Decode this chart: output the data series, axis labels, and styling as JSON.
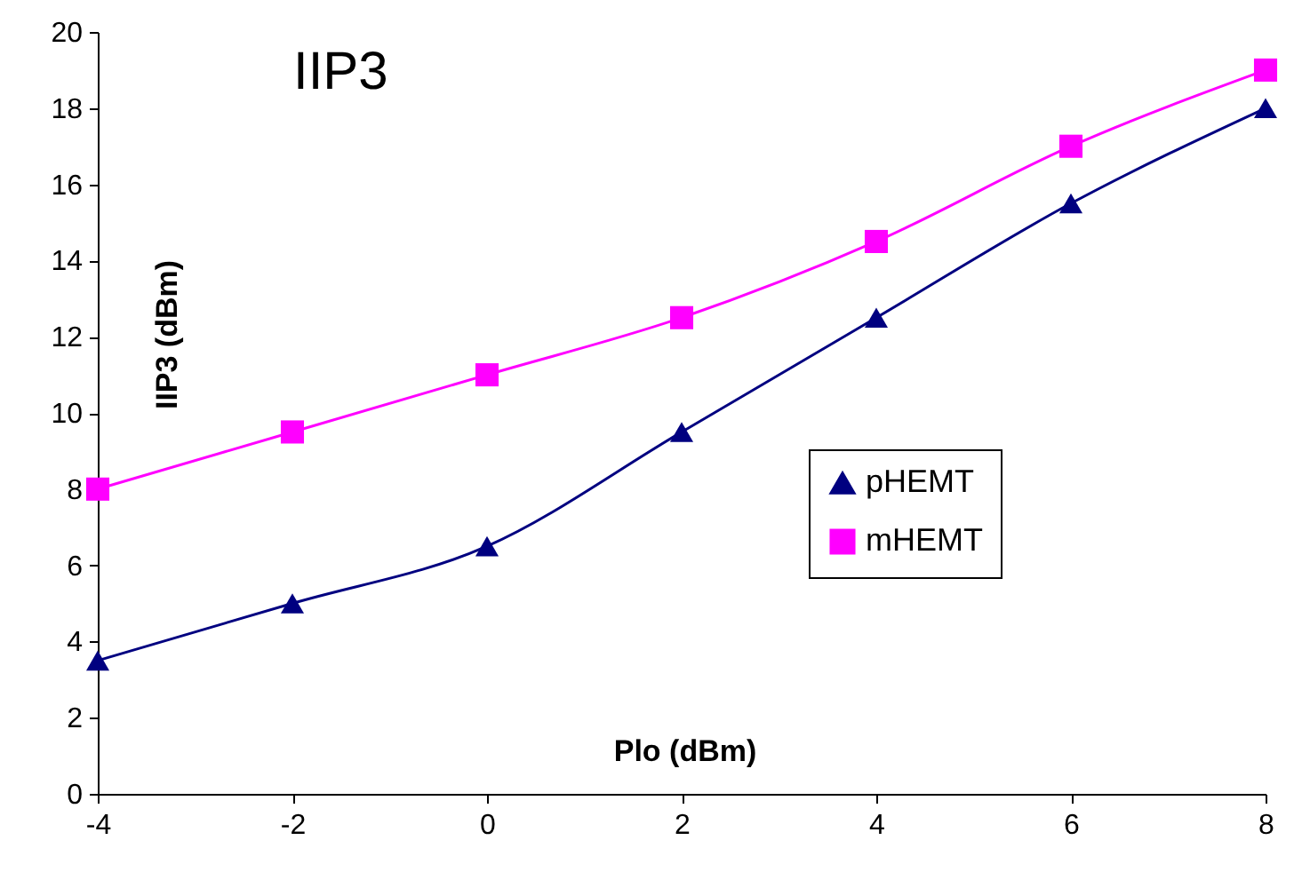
{
  "chart_data": {
    "type": "line",
    "title": "IIP3",
    "xlabel": "Plo (dBm)",
    "ylabel": "IIP3 (dBm)",
    "x": [
      -4,
      -2,
      0,
      2,
      4,
      6,
      8
    ],
    "series": [
      {
        "name": "pHEMT",
        "color": "#000080",
        "marker": "triangle",
        "values": [
          3.5,
          5,
          6.5,
          9.5,
          12.5,
          15.5,
          18
        ]
      },
      {
        "name": "mHEMT",
        "color": "#ff00ff",
        "marker": "square",
        "values": [
          8,
          9.5,
          11,
          12.5,
          14.5,
          17,
          19
        ]
      }
    ],
    "xlim": [
      -4,
      8
    ],
    "xticks": [
      -4,
      -2,
      0,
      2,
      4,
      6,
      8
    ],
    "ylim": [
      0,
      20
    ],
    "yticks": [
      0,
      2,
      4,
      6,
      8,
      10,
      12,
      14,
      16,
      18,
      20
    ],
    "grid": false,
    "legend": "right",
    "line_style": "solid"
  }
}
